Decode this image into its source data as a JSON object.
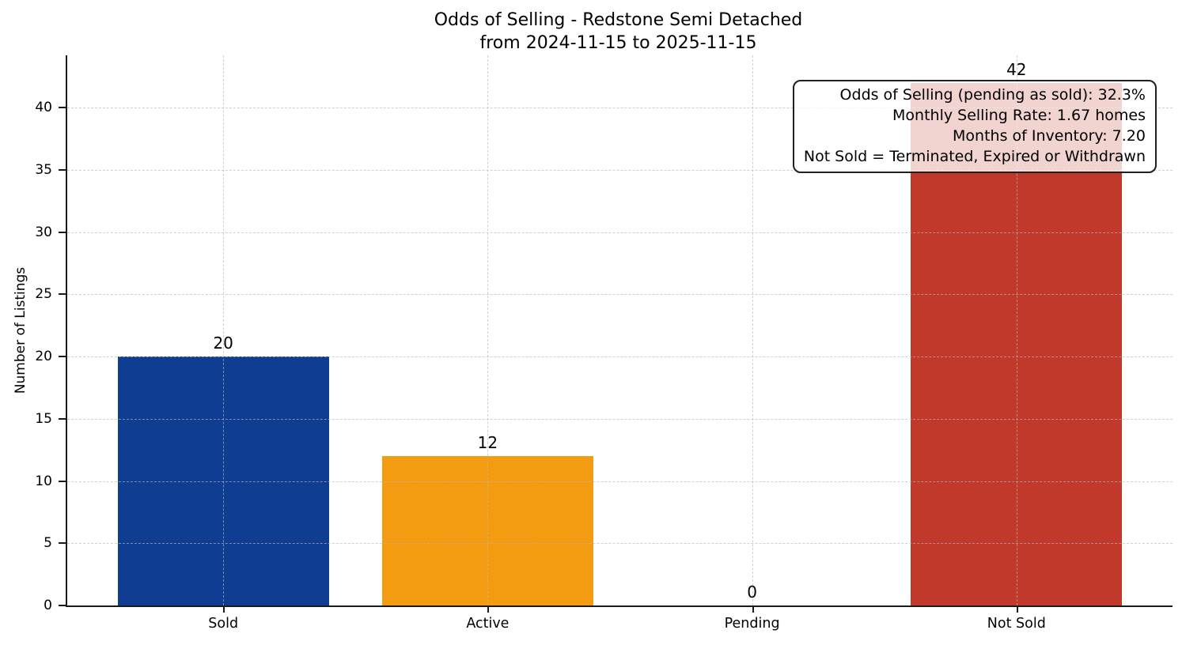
{
  "title": {
    "line1": "Odds of Selling - Redstone Semi Detached",
    "line2": "from 2024-11-15 to 2025-11-15"
  },
  "chart_data": {
    "type": "bar",
    "title": "Odds of Selling - Redstone Semi Detached\nfrom 2024-11-15 to 2025-11-15",
    "categories": [
      "Sold",
      "Active",
      "Pending",
      "Not Sold"
    ],
    "values": [
      20,
      12,
      0,
      42
    ],
    "bar_value_labels": [
      "20",
      "12",
      "0",
      "42"
    ],
    "bar_colors": [
      "#0e3d91",
      "#f39c12",
      "#c7c7c7",
      "#c0392b"
    ],
    "xlabel": "",
    "ylabel": "Number of Listings",
    "ylim": [
      0,
      44.2
    ],
    "yticks": [
      0,
      5,
      10,
      15,
      20,
      25,
      30,
      35,
      40
    ],
    "grid": true,
    "legend": false,
    "annotation": {
      "lines": [
        "Odds of Selling (pending as sold): 32.3%",
        "Monthly Selling Rate: 1.67 homes",
        "Months of Inventory: 7.20",
        "Not Sold = Terminated, Expired or Withdrawn"
      ]
    },
    "colors": {
      "sold_bar": "#0e3d91",
      "active_bar": "#f39c12",
      "not_sold_bar": "#c0392b",
      "spine": "#1a1a1a",
      "gridline": "#b9b9b9",
      "annotation_background": "#ffffff",
      "annotation_border": "#1f1f1f"
    }
  }
}
